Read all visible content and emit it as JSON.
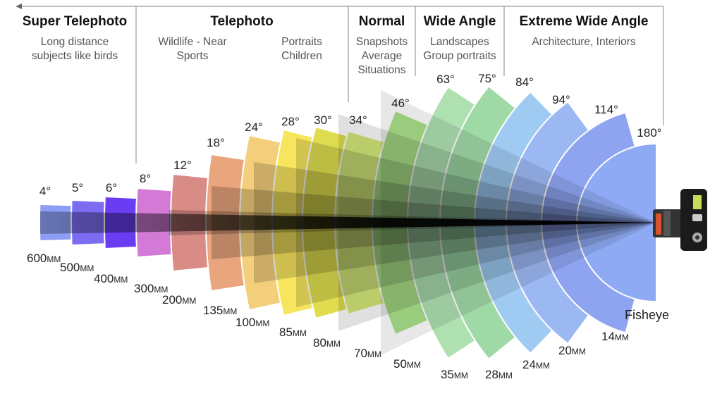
{
  "categories": [
    {
      "title": "Super Telephoto",
      "desc": [
        "Long distance",
        "subjects like birds"
      ]
    },
    {
      "title": "Telephoto",
      "desc_left": [
        "Wildlife - Near",
        "Sports"
      ],
      "desc_right": [
        "Portraits",
        "Children"
      ]
    },
    {
      "title": "Normal",
      "desc": [
        "Snapshots",
        "Average",
        "Situations"
      ]
    },
    {
      "title": "Wide Angle",
      "desc": [
        "Landscapes",
        "Group portraits"
      ]
    },
    {
      "title": "Extreme Wide Angle",
      "desc": [
        "Architecture, Interiors"
      ]
    }
  ],
  "lenses": [
    {
      "angle": "4°",
      "focal": "600",
      "unit": "MM",
      "color": "#8c9df5"
    },
    {
      "angle": "5°",
      "focal": "500",
      "unit": "MM",
      "color": "#7b6cf2"
    },
    {
      "angle": "6°",
      "focal": "400",
      "unit": "MM",
      "color": "#6a3df3"
    },
    {
      "angle": "8°",
      "focal": "300",
      "unit": "MM",
      "color": "#d27ad6"
    },
    {
      "angle": "12°",
      "focal": "200",
      "unit": "MM",
      "color": "#d98b86"
    },
    {
      "angle": "18°",
      "focal": "135",
      "unit": "MM",
      "color": "#e9a67e"
    },
    {
      "angle": "24°",
      "focal": "100",
      "unit": "MM",
      "color": "#f3cf7b"
    },
    {
      "angle": "28°",
      "focal": "85",
      "unit": "MM",
      "color": "#f7e55e"
    },
    {
      "angle": "30°",
      "focal": "80",
      "unit": "MM",
      "color": "#dfdd4f"
    },
    {
      "angle": "34°",
      "focal": "70",
      "unit": "MM",
      "color": "#d5ea7a"
    },
    {
      "angle": "46°",
      "focal": "50",
      "unit": "MM",
      "color": "#aae28a"
    },
    {
      "angle": "63°",
      "focal": "35",
      "unit": "MM",
      "color": "#aee0b0"
    },
    {
      "angle": "75°",
      "focal": "28",
      "unit": "MM",
      "color": "#9fd9a6"
    },
    {
      "angle": "84°",
      "focal": "24",
      "unit": "MM",
      "color": "#9fcbf2"
    },
    {
      "angle": "94°",
      "focal": "20",
      "unit": "MM",
      "color": "#9bb8f3"
    },
    {
      "angle": "114°",
      "focal": "14",
      "unit": "MM",
      "color": "#8ea4f0"
    },
    {
      "angle": "180°",
      "focal": "",
      "unit": "",
      "color": "#8faaf4"
    }
  ],
  "fisheye_label": "Fisheye"
}
